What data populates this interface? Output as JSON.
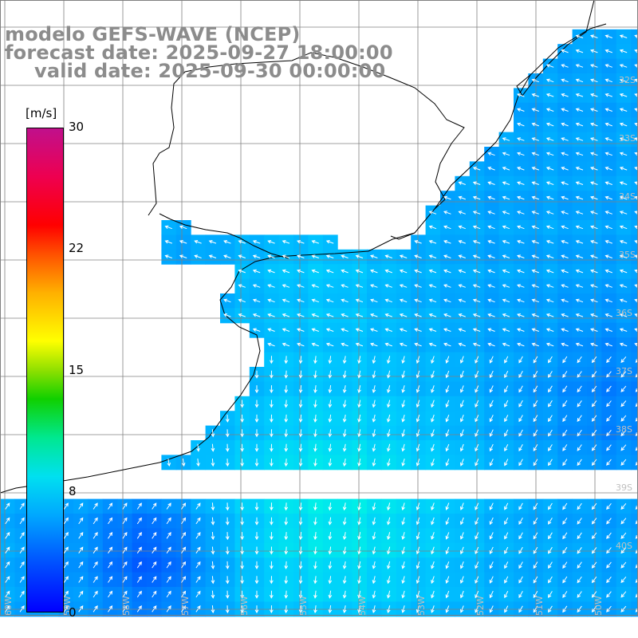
{
  "title": {
    "line1": "modelo GEFS-WAVE (NCEP)",
    "line2": "forecast date: 2025-09-27 18:00:00",
    "line3": "valid date: 2025-09-30 00:00:00"
  },
  "colorbar": {
    "unit": "[m/s]",
    "ticks": [
      "30",
      "22",
      "15",
      "8",
      "0"
    ],
    "tick_values": [
      30,
      22,
      15,
      8,
      0
    ],
    "range": [
      0,
      30
    ],
    "colors": [
      "#0000ff",
      "#00a8ff",
      "#00e0f0",
      "#10d000",
      "#ffff00",
      "#ff5000",
      "#ff0000",
      "#c0108c"
    ]
  },
  "map": {
    "land_color": "#ffffff",
    "coast_color": "#000000",
    "grid_color": "#808080",
    "lat_labels": [
      "32S",
      "33S",
      "34S",
      "35S",
      "36S",
      "37S",
      "38S",
      "39S",
      "40S"
    ],
    "lon_labels": [
      "60W",
      "59W",
      "58W",
      "57W",
      "56W",
      "55W",
      "54W",
      "53W",
      "52W",
      "51W",
      "50W"
    ],
    "vector_color": "#ffffff"
  }
}
